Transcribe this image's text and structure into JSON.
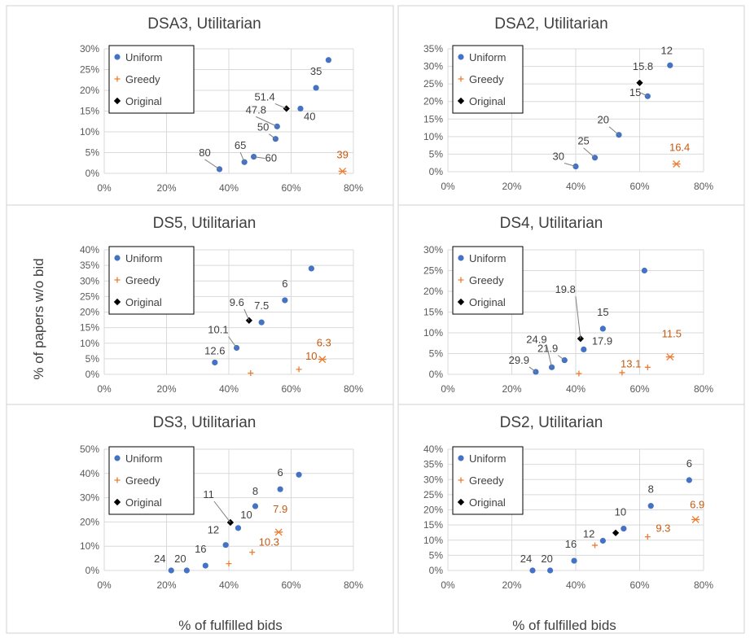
{
  "figure": {
    "ylabel": "% of papers w/o bid",
    "xlabel": "% of fulfilled bids",
    "legend": [
      "Uniform",
      "Greedy",
      "Original"
    ],
    "colors": {
      "uniform": "#4472c4",
      "greedy": "#ed7d31",
      "original": "#000000"
    }
  },
  "chart_data": [
    {
      "type": "scatter",
      "title": "DSA3, Utilitarian",
      "xlim": [
        0,
        80
      ],
      "ylim": [
        0,
        30
      ],
      "xticks": [
        "0%",
        "20%",
        "40%",
        "60%",
        "80%"
      ],
      "yticks": [
        "0%",
        "5%",
        "10%",
        "15%",
        "20%",
        "25%",
        "30%"
      ],
      "series": [
        {
          "name": "Uniform",
          "points": [
            [
              37,
              1
            ],
            [
              45,
              2.7
            ],
            [
              48,
              4
            ],
            [
              55,
              8.3
            ],
            [
              55.5,
              11.3
            ],
            [
              63,
              15.6
            ],
            [
              68,
              20.6
            ],
            [
              72,
              27.3
            ]
          ]
        },
        {
          "name": "Greedy",
          "points": [
            [
              76.5,
              0.5
            ]
          ]
        },
        {
          "name": "Original",
          "points": [
            [
              58.5,
              15.6
            ]
          ]
        }
      ],
      "annotations": [
        {
          "text": "80",
          "series": "Uniform"
        },
        {
          "text": "65",
          "series": "Uniform"
        },
        {
          "text": "60",
          "series": "Uniform"
        },
        {
          "text": "50",
          "series": "Uniform"
        },
        {
          "text": "51.4",
          "series": "Original"
        },
        {
          "text": "47.8",
          "series": "Uniform"
        },
        {
          "text": "40",
          "series": "Uniform"
        },
        {
          "text": "35",
          "series": "Uniform"
        },
        {
          "text": "39",
          "series": "Greedy"
        }
      ]
    },
    {
      "type": "scatter",
      "title": "DSA2, Utilitarian",
      "xlim": [
        0,
        80
      ],
      "ylim": [
        0,
        35
      ],
      "xticks": [
        "0%",
        "20%",
        "40%",
        "60%",
        "80%"
      ],
      "yticks": [
        "0%",
        "5%",
        "10%",
        "15%",
        "20%",
        "25%",
        "30%",
        "35%"
      ],
      "series": [
        {
          "name": "Uniform",
          "points": [
            [
              40,
              1.5
            ],
            [
              46,
              4
            ],
            [
              53.5,
              10.5
            ],
            [
              62.5,
              21.5
            ],
            [
              69.5,
              30.3
            ]
          ]
        },
        {
          "name": "Greedy",
          "points": [
            [
              71.5,
              2.2
            ]
          ]
        },
        {
          "name": "Original",
          "points": [
            [
              60,
              25.3
            ]
          ]
        }
      ],
      "annotations": [
        {
          "text": "30",
          "series": "Uniform"
        },
        {
          "text": "25",
          "series": "Uniform"
        },
        {
          "text": "20",
          "series": "Uniform"
        },
        {
          "text": "15",
          "series": "Uniform"
        },
        {
          "text": "12",
          "series": "Uniform"
        },
        {
          "text": "15.8",
          "series": "Original"
        },
        {
          "text": "16.4",
          "series": "Greedy"
        }
      ]
    },
    {
      "type": "scatter",
      "title": "DS5, Utilitarian",
      "xlim": [
        0,
        80
      ],
      "ylim": [
        0,
        40
      ],
      "xticks": [
        "0%",
        "20%",
        "40%",
        "60%",
        "80%"
      ],
      "yticks": [
        "0%",
        "5%",
        "10%",
        "15%",
        "20%",
        "25%",
        "30%",
        "35%",
        "40%"
      ],
      "series": [
        {
          "name": "Uniform",
          "points": [
            [
              35.5,
              3.8
            ],
            [
              42.5,
              8.5
            ],
            [
              50.5,
              16.7
            ],
            [
              58,
              23.8
            ],
            [
              66.5,
              34
            ]
          ]
        },
        {
          "name": "Greedy",
          "points": [
            [
              47,
              0.4
            ],
            [
              62.5,
              1.6
            ],
            [
              70,
              4.8
            ]
          ]
        },
        {
          "name": "Original",
          "points": [
            [
              46.5,
              17.3
            ]
          ]
        }
      ],
      "annotations": [
        {
          "text": "12.6",
          "series": "Uniform"
        },
        {
          "text": "10.1",
          "series": "Uniform"
        },
        {
          "text": "9.6",
          "series": "Original"
        },
        {
          "text": "7.5",
          "series": "Uniform"
        },
        {
          "text": "6",
          "series": "Uniform"
        },
        {
          "text": "10",
          "series": "Greedy"
        },
        {
          "text": "6.3",
          "series": "Greedy"
        }
      ]
    },
    {
      "type": "scatter",
      "title": "DS4, Utilitarian",
      "xlim": [
        0,
        80
      ],
      "ylim": [
        0,
        30
      ],
      "xticks": [
        "0%",
        "20%",
        "40%",
        "60%",
        "80%"
      ],
      "yticks": [
        "0%",
        "5%",
        "10%",
        "15%",
        "20%",
        "25%",
        "30%"
      ],
      "series": [
        {
          "name": "Uniform",
          "points": [
            [
              27.5,
              0.6
            ],
            [
              32.5,
              1.7
            ],
            [
              36.5,
              3.4
            ],
            [
              42.5,
              6
            ],
            [
              48.5,
              11
            ],
            [
              61.5,
              25
            ]
          ]
        },
        {
          "name": "Greedy",
          "points": [
            [
              41,
              0.2
            ],
            [
              54.5,
              0.4
            ],
            [
              62.5,
              1.7
            ],
            [
              69.5,
              4.2
            ]
          ]
        },
        {
          "name": "Original",
          "points": [
            [
              41.5,
              8.6
            ]
          ]
        }
      ],
      "annotations": [
        {
          "text": "29.9",
          "series": "Uniform"
        },
        {
          "text": "24.9",
          "series": "Uniform"
        },
        {
          "text": "21.9",
          "series": "Uniform"
        },
        {
          "text": "19.8",
          "series": "Original"
        },
        {
          "text": "17.9",
          "series": "Uniform"
        },
        {
          "text": "15",
          "series": "Uniform"
        },
        {
          "text": "13.1",
          "series": "Greedy"
        },
        {
          "text": "11.5",
          "series": "Greedy"
        }
      ]
    },
    {
      "type": "scatter",
      "title": "DS3, Utilitarian",
      "xlim": [
        0,
        80
      ],
      "ylim": [
        0,
        50
      ],
      "xticks": [
        "0%",
        "20%",
        "40%",
        "60%",
        "80%"
      ],
      "yticks": [
        "0%",
        "10%",
        "20%",
        "30%",
        "40%",
        "50%"
      ],
      "series": [
        {
          "name": "Uniform",
          "points": [
            [
              21.5,
              0
            ],
            [
              26.5,
              0
            ],
            [
              32.5,
              2
            ],
            [
              39,
              10.5
            ],
            [
              43,
              17.5
            ],
            [
              48.5,
              26.5
            ],
            [
              56.5,
              33.5
            ],
            [
              62.5,
              39.5
            ]
          ]
        },
        {
          "name": "Greedy",
          "points": [
            [
              40,
              2.8
            ],
            [
              47.5,
              7.5
            ],
            [
              56,
              15.8
            ]
          ]
        },
        {
          "name": "Original",
          "points": [
            [
              40.5,
              19.8
            ]
          ]
        }
      ],
      "annotations": [
        {
          "text": "24",
          "series": "Uniform"
        },
        {
          "text": "20",
          "series": "Uniform"
        },
        {
          "text": "16",
          "series": "Uniform"
        },
        {
          "text": "12",
          "series": "Uniform"
        },
        {
          "text": "11",
          "series": "Original"
        },
        {
          "text": "10",
          "series": "Uniform"
        },
        {
          "text": "8",
          "series": "Uniform"
        },
        {
          "text": "6",
          "series": "Uniform"
        },
        {
          "text": "10.3",
          "series": "Greedy"
        },
        {
          "text": "7.9",
          "series": "Greedy"
        }
      ]
    },
    {
      "type": "scatter",
      "title": "DS2, Utilitarian",
      "xlim": [
        0,
        80
      ],
      "ylim": [
        0,
        40
      ],
      "xticks": [
        "0%",
        "20%",
        "40%",
        "60%",
        "80%"
      ],
      "yticks": [
        "0%",
        "5%",
        "10%",
        "15%",
        "20%",
        "25%",
        "30%",
        "35%",
        "40%"
      ],
      "series": [
        {
          "name": "Uniform",
          "points": [
            [
              26.5,
              0
            ],
            [
              32,
              0
            ],
            [
              39.5,
              3.2
            ],
            [
              48.5,
              9.8
            ],
            [
              55,
              13.8
            ],
            [
              63.5,
              21.3
            ],
            [
              75.5,
              29.8
            ]
          ]
        },
        {
          "name": "Greedy",
          "points": [
            [
              46,
              8.3
            ],
            [
              62.5,
              11.1
            ],
            [
              77.5,
              16.8
            ]
          ]
        },
        {
          "name": "Original",
          "points": [
            [
              52.5,
              12.4
            ]
          ]
        }
      ],
      "annotations": [
        {
          "text": "24",
          "series": "Uniform"
        },
        {
          "text": "20",
          "series": "Uniform"
        },
        {
          "text": "16",
          "series": "Uniform"
        },
        {
          "text": "12",
          "series": "Uniform"
        },
        {
          "text": "10",
          "series": "Uniform"
        },
        {
          "text": "8",
          "series": "Uniform"
        },
        {
          "text": "6",
          "series": "Uniform"
        },
        {
          "text": "9.3",
          "series": "Greedy"
        },
        {
          "text": "6.9",
          "series": "Greedy"
        }
      ]
    }
  ]
}
